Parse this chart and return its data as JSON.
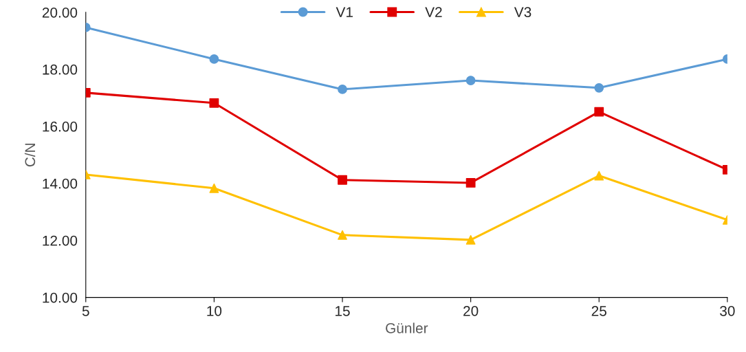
{
  "chart_data": {
    "type": "line",
    "xlabel": "Günler",
    "ylabel": "C/N",
    "x": [
      5,
      10,
      15,
      20,
      25,
      30
    ],
    "series": [
      {
        "name": "V1",
        "color": "#5b9bd5",
        "marker": "circle",
        "values": [
          19.47,
          18.36,
          17.3,
          17.61,
          17.35,
          18.36
        ]
      },
      {
        "name": "V2",
        "color": "#e00000",
        "marker": "square",
        "values": [
          17.18,
          16.82,
          14.12,
          14.02,
          16.51,
          14.48
        ]
      },
      {
        "name": "V3",
        "color": "#ffc000",
        "marker": "triangle",
        "values": [
          14.31,
          13.83,
          12.19,
          12.02,
          14.27,
          12.72
        ]
      }
    ],
    "xlim": [
      5,
      30
    ],
    "xticks": [
      5,
      10,
      15,
      20,
      25,
      30
    ],
    "ylim": [
      10,
      20
    ],
    "yticks": [
      {
        "value": 10,
        "label": "10.00"
      },
      {
        "value": 12,
        "label": "12.00"
      },
      {
        "value": 14,
        "label": "14.00"
      },
      {
        "value": 16,
        "label": "16.00"
      },
      {
        "value": 18,
        "label": "18.00"
      },
      {
        "value": 20,
        "label": "20.00"
      }
    ],
    "grid": false,
    "legend": "top"
  }
}
